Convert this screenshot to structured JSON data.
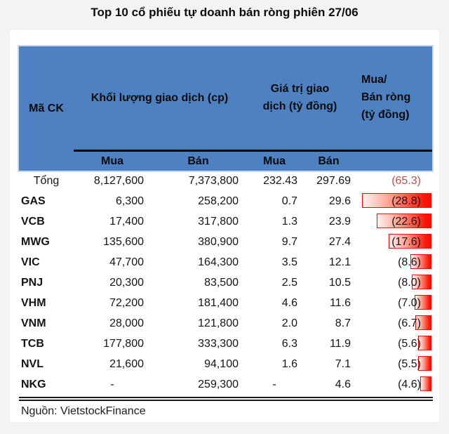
{
  "title": "Top 10 cổ phiếu tự doanh bán ròng phiên 27/06",
  "source": "Nguồn: VietstockFinance",
  "colors": {
    "header_bg": "#4d81c2",
    "bar_border": "#ff0000",
    "bar_fill_end": "#ff0000",
    "total_net_text": "#c0504d"
  },
  "table": {
    "header": {
      "ticker": "Mã CK",
      "volume_group": "Khối lượng giao dịch (cp)",
      "value_group_lines": [
        "Giá trị giao",
        "dịch (tỷ đồng)"
      ],
      "net_group_lines": [
        "Mua/",
        "Bán ròng",
        "(tỷ đồng)"
      ],
      "sub": [
        "Mua",
        "Bán",
        "Mua",
        "Bán"
      ]
    },
    "total_row": {
      "ticker": "Tổng",
      "vol_buy": "8,127,600",
      "vol_sell": "7,373,800",
      "val_buy": "232.43",
      "val_sell": "297.69",
      "net": "(65.3)",
      "net_value": 65.3
    },
    "rows": [
      {
        "ticker": "GAS",
        "vol_buy": "6,300",
        "vol_sell": "258,200",
        "val_buy": "0.7",
        "val_sell": "29.6",
        "net": "(28.8)",
        "net_value": 28.8
      },
      {
        "ticker": "VCB",
        "vol_buy": "17,400",
        "vol_sell": "317,800",
        "val_buy": "1.3",
        "val_sell": "23.9",
        "net": "(22.6)",
        "net_value": 22.6
      },
      {
        "ticker": "MWG",
        "vol_buy": "135,600",
        "vol_sell": "380,900",
        "val_buy": "9.7",
        "val_sell": "27.4",
        "net": "(17.6)",
        "net_value": 17.6
      },
      {
        "ticker": "VIC",
        "vol_buy": "47,700",
        "vol_sell": "164,300",
        "val_buy": "3.5",
        "val_sell": "12.1",
        "net": "(8.6)",
        "net_value": 8.6
      },
      {
        "ticker": "PNJ",
        "vol_buy": "20,300",
        "vol_sell": "83,500",
        "val_buy": "2.5",
        "val_sell": "10.5",
        "net": "(8.0)",
        "net_value": 8.0
      },
      {
        "ticker": "VHM",
        "vol_buy": "72,200",
        "vol_sell": "181,400",
        "val_buy": "4.6",
        "val_sell": "11.6",
        "net": "(7.0)",
        "net_value": 7.0
      },
      {
        "ticker": "VNM",
        "vol_buy": "28,000",
        "vol_sell": "121,800",
        "val_buy": "2.0",
        "val_sell": "8.7",
        "net": "(6.7)",
        "net_value": 6.7
      },
      {
        "ticker": "TCB",
        "vol_buy": "177,800",
        "vol_sell": "333,300",
        "val_buy": "6.3",
        "val_sell": "11.9",
        "net": "(5.6)",
        "net_value": 5.6
      },
      {
        "ticker": "NVL",
        "vol_buy": "21,600",
        "vol_sell": "94,100",
        "val_buy": "1.6",
        "val_sell": "7.1",
        "net": "(5.5)",
        "net_value": 5.5
      },
      {
        "ticker": "NKG",
        "vol_buy": "-",
        "vol_sell": "259,300",
        "val_buy": "-",
        "val_sell": "4.6",
        "net": "(4.6)",
        "net_value": 4.6
      }
    ]
  },
  "chart_data": {
    "type": "table",
    "title": "Top 10 cổ phiếu tự doanh bán ròng phiên 27/06",
    "columns": [
      "Mã CK",
      "Khối lượng giao dịch Mua (cp)",
      "Khối lượng giao dịch Bán (cp)",
      "Giá trị giao dịch Mua (tỷ đồng)",
      "Giá trị giao dịch Bán (tỷ đồng)",
      "Mua/Bán ròng (tỷ đồng)"
    ],
    "rows": [
      [
        "Tổng",
        8127600,
        7373800,
        232.43,
        297.69,
        -65.3
      ],
      [
        "GAS",
        6300,
        258200,
        0.7,
        29.6,
        -28.8
      ],
      [
        "VCB",
        17400,
        317800,
        1.3,
        23.9,
        -22.6
      ],
      [
        "MWG",
        135600,
        380900,
        9.7,
        27.4,
        -17.6
      ],
      [
        "VIC",
        47700,
        164300,
        3.5,
        12.1,
        -8.6
      ],
      [
        "PNJ",
        20300,
        83500,
        2.5,
        10.5,
        -8.0
      ],
      [
        "VHM",
        72200,
        181400,
        4.6,
        11.6,
        -7.0
      ],
      [
        "VNM",
        28000,
        121800,
        2.0,
        8.7,
        -6.7
      ],
      [
        "TCB",
        177800,
        333300,
        6.3,
        11.9,
        -5.6
      ],
      [
        "NVL",
        21600,
        94100,
        1.6,
        7.1,
        -5.5
      ],
      [
        "NKG",
        null,
        259300,
        null,
        4.6,
        -4.6
      ]
    ],
    "net_bar": {
      "style": "right-aligned red gradient data bars on net column",
      "scale_max": 28.8,
      "legend": "none",
      "grid": "off"
    }
  }
}
